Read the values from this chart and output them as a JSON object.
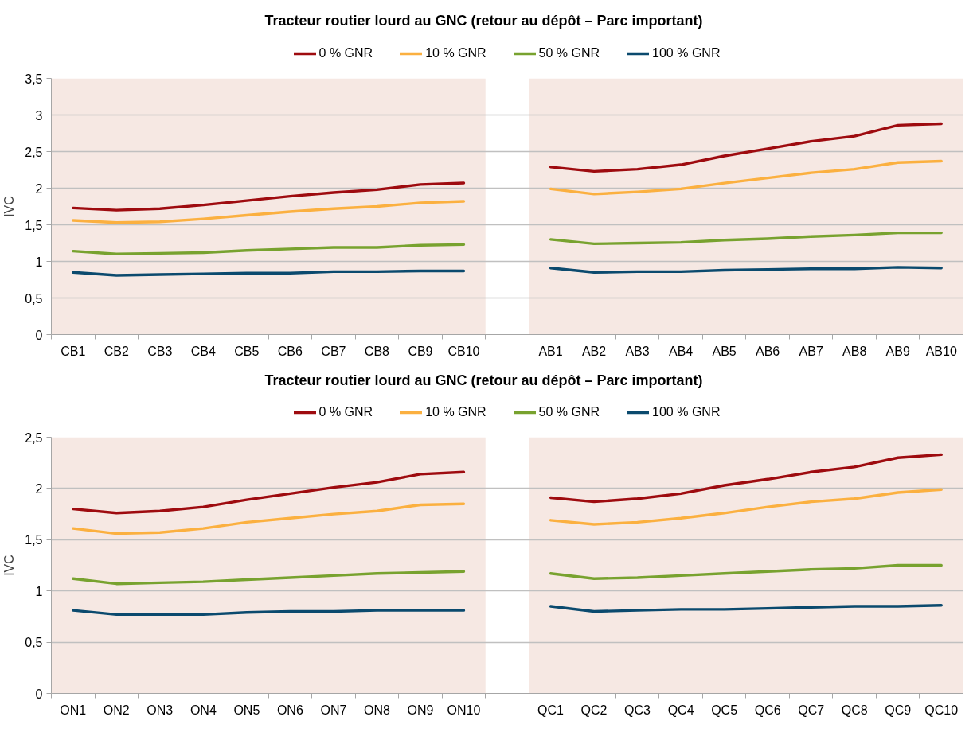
{
  "chart_data": [
    {
      "type": "line",
      "title": "Tracteur routier lourd au GNC (retour au dépôt – Parc important)",
      "ylabel": "IVC",
      "categories": [
        "CB1",
        "CB2",
        "CB3",
        "CB4",
        "CB5",
        "CB6",
        "CB7",
        "CB8",
        "CB9",
        "CB10",
        null,
        "AB1",
        "AB2",
        "AB3",
        "AB4",
        "AB5",
        "AB6",
        "AB7",
        "AB8",
        "AB9",
        "AB10"
      ],
      "series": [
        {
          "name": "0 % GNR",
          "color": "#9e0b0f",
          "values": [
            1.73,
            1.7,
            1.72,
            1.77,
            1.83,
            1.89,
            1.94,
            1.98,
            2.05,
            2.07,
            null,
            2.29,
            2.23,
            2.26,
            2.32,
            2.44,
            2.54,
            2.64,
            2.71,
            2.86,
            2.88
          ]
        },
        {
          "name": "10 % GNR",
          "color": "#fbb040",
          "values": [
            1.56,
            1.53,
            1.54,
            1.58,
            1.63,
            1.68,
            1.72,
            1.75,
            1.8,
            1.82,
            null,
            1.99,
            1.92,
            1.95,
            1.99,
            2.07,
            2.14,
            2.21,
            2.26,
            2.35,
            2.37
          ]
        },
        {
          "name": "50 % GNR",
          "color": "#78a22f",
          "values": [
            1.14,
            1.1,
            1.11,
            1.12,
            1.15,
            1.17,
            1.19,
            1.19,
            1.22,
            1.23,
            null,
            1.3,
            1.24,
            1.25,
            1.26,
            1.29,
            1.31,
            1.34,
            1.36,
            1.39,
            1.39
          ]
        },
        {
          "name": "100 % GNR",
          "color": "#0b4a6e",
          "values": [
            0.85,
            0.81,
            0.82,
            0.83,
            0.84,
            0.84,
            0.86,
            0.86,
            0.87,
            0.87,
            null,
            0.91,
            0.85,
            0.86,
            0.86,
            0.88,
            0.89,
            0.9,
            0.9,
            0.92,
            0.91
          ]
        }
      ],
      "ylim": [
        0,
        3.5
      ],
      "yticks": [
        0,
        {
          "value": 0.5,
          "label": "0,5"
        },
        1,
        {
          "value": 1.5,
          "label": "1,5"
        },
        2,
        {
          "value": 2.5,
          "label": "2,5"
        },
        3,
        {
          "value": 3.5,
          "label": "3,5"
        }
      ],
      "bands": [
        {
          "axis": "x",
          "from": "CB1",
          "to": "CB10",
          "color": "#f6e8e3"
        },
        {
          "axis": "x",
          "from": "AB1",
          "to": "AB10",
          "color": "#f6e8e3"
        }
      ],
      "grid": "y",
      "legend": "top"
    },
    {
      "type": "line",
      "title": "Tracteur routier lourd au GNC (retour au dépôt – Parc important)",
      "ylabel": "IVC",
      "categories": [
        "ON1",
        "ON2",
        "ON3",
        "ON4",
        "ON5",
        "ON6",
        "ON7",
        "ON8",
        "ON9",
        "ON10",
        null,
        "QC1",
        "QC2",
        "QC3",
        "QC4",
        "QC5",
        "QC6",
        "QC7",
        "QC8",
        "QC9",
        "QC10"
      ],
      "series": [
        {
          "name": "0 % GNR",
          "color": "#9e0b0f",
          "values": [
            1.8,
            1.76,
            1.78,
            1.82,
            1.89,
            1.95,
            2.01,
            2.06,
            2.14,
            2.16,
            null,
            1.91,
            1.87,
            1.9,
            1.95,
            2.03,
            2.09,
            2.16,
            2.21,
            2.3,
            2.33
          ]
        },
        {
          "name": "10 % GNR",
          "color": "#fbb040",
          "values": [
            1.61,
            1.56,
            1.57,
            1.61,
            1.67,
            1.71,
            1.75,
            1.78,
            1.84,
            1.85,
            null,
            1.69,
            1.65,
            1.67,
            1.71,
            1.76,
            1.82,
            1.87,
            1.9,
            1.96,
            1.99
          ]
        },
        {
          "name": "50 % GNR",
          "color": "#78a22f",
          "values": [
            1.12,
            1.07,
            1.08,
            1.09,
            1.11,
            1.13,
            1.15,
            1.17,
            1.18,
            1.19,
            null,
            1.17,
            1.12,
            1.13,
            1.15,
            1.17,
            1.19,
            1.21,
            1.22,
            1.25,
            1.25
          ]
        },
        {
          "name": "100 % GNR",
          "color": "#0b4a6e",
          "values": [
            0.81,
            0.77,
            0.77,
            0.77,
            0.79,
            0.8,
            0.8,
            0.81,
            0.81,
            0.81,
            null,
            0.85,
            0.8,
            0.81,
            0.82,
            0.82,
            0.83,
            0.84,
            0.85,
            0.85,
            0.86
          ]
        }
      ],
      "ylim": [
        0,
        2.5
      ],
      "yticks": [
        0,
        {
          "value": 0.5,
          "label": "0,5"
        },
        1,
        {
          "value": 1.5,
          "label": "1,5"
        },
        2,
        {
          "value": 2.5,
          "label": "2,5"
        }
      ],
      "bands": [
        {
          "axis": "x",
          "from": "ON1",
          "to": "ON10",
          "color": "#f6e8e3"
        },
        {
          "axis": "x",
          "from": "QC1",
          "to": "QC10",
          "color": "#f6e8e3"
        }
      ],
      "grid": "y",
      "legend": "top"
    }
  ]
}
